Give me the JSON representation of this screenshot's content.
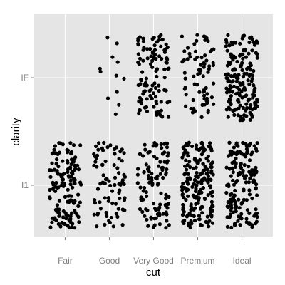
{
  "chart_data": {
    "type": "scatter",
    "jitter": true,
    "xlabel": "cut",
    "ylabel": "clarity",
    "categories_x": [
      "Fair",
      "Good",
      "Very Good",
      "Premium",
      "Ideal"
    ],
    "categories_y": [
      "I1",
      "IF"
    ],
    "grid": true,
    "legend": "none",
    "colors": {
      "panel": "#e5e5e5",
      "grid": "#ffffff",
      "point": "#000000"
    },
    "groups": [
      {
        "x": "Fair",
        "y": "I1",
        "n": 150
      },
      {
        "x": "Fair",
        "y": "IF",
        "n": 0
      },
      {
        "x": "Good",
        "y": "I1",
        "n": 80
      },
      {
        "x": "Good",
        "y": "IF",
        "n": 12
      },
      {
        "x": "Very Good",
        "y": "I1",
        "n": 110
      },
      {
        "x": "Very Good",
        "y": "IF",
        "n": 110
      },
      {
        "x": "Premium",
        "y": "I1",
        "n": 200
      },
      {
        "x": "Premium",
        "y": "IF",
        "n": 75
      },
      {
        "x": "Ideal",
        "y": "I1",
        "n": 160
      },
      {
        "x": "Ideal",
        "y": "IF",
        "n": 180
      }
    ]
  }
}
